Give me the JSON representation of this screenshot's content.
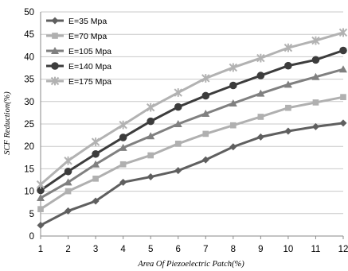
{
  "chart_data": {
    "type": "line",
    "title": "",
    "xlabel": "Area Of Piezoelectric Patch(%)",
    "ylabel": "SCF Reduction(%)",
    "x": [
      1,
      2,
      3,
      4,
      5,
      6,
      7,
      8,
      9,
      10,
      11,
      12
    ],
    "xlim": [
      1,
      12
    ],
    "ylim": [
      0,
      50
    ],
    "yticks": [
      0,
      5,
      10,
      15,
      20,
      25,
      30,
      35,
      40,
      45,
      50
    ],
    "grid": "horizontal",
    "legend_position": "top-left",
    "series": [
      {
        "name": "E=35 Mpa",
        "marker": "diamond",
        "color": "#5f5f5f",
        "values": [
          2.4,
          5.6,
          7.8,
          12.0,
          13.2,
          14.6,
          17.0,
          19.9,
          22.1,
          23.4,
          24.4,
          25.2
        ]
      },
      {
        "name": "E=70 Mpa",
        "marker": "square",
        "color": "#b0b0b0",
        "values": [
          6.0,
          10.0,
          12.8,
          16.0,
          18.0,
          20.6,
          22.8,
          24.7,
          26.6,
          28.6,
          29.8,
          31.0
        ]
      },
      {
        "name": "E=105 Mpa",
        "marker": "triangle",
        "color": "#808080",
        "values": [
          8.5,
          12.0,
          16.0,
          19.7,
          22.3,
          25.0,
          27.3,
          29.6,
          31.8,
          33.8,
          35.5,
          37.2
        ]
      },
      {
        "name": "E=140 Mpa",
        "marker": "circle",
        "color": "#3c3c3c",
        "values": [
          10.2,
          14.4,
          18.3,
          22.0,
          25.6,
          28.8,
          31.3,
          33.6,
          35.8,
          38.0,
          39.3,
          41.4
        ]
      },
      {
        "name": "E=175 Mpa",
        "marker": "star",
        "color": "#b2b2b2",
        "values": [
          11.5,
          16.8,
          21.0,
          24.8,
          28.7,
          32.0,
          35.2,
          37.6,
          39.7,
          42.0,
          43.6,
          45.4
        ]
      }
    ]
  }
}
